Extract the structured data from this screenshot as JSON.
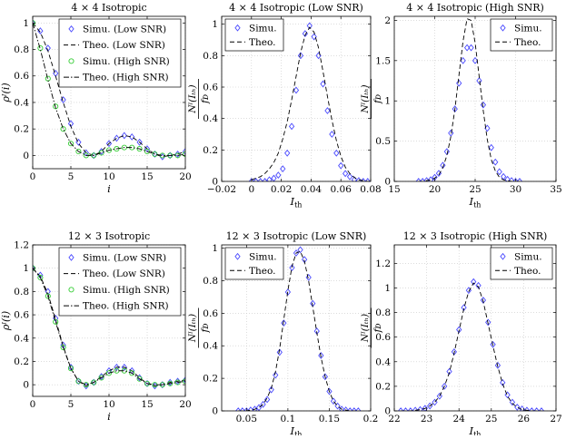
{
  "chart_data": [
    {
      "type": "line",
      "title": "4 × 4 Isotropic",
      "xlabel": "i",
      "ylabel": "ρ_I(i)",
      "xlim": [
        0,
        20
      ],
      "ylim": [
        -0.1,
        1.05
      ],
      "xticks": [
        0,
        5,
        10,
        15,
        20
      ],
      "yticks": [
        0,
        0.2,
        0.4,
        0.6,
        0.8,
        1
      ],
      "grid": true,
      "legend_position": "top-right",
      "series": [
        {
          "name": "Simu. (Low SNR)",
          "style": "marker",
          "marker": "diamond",
          "color": "#4a4aff",
          "x": [
            0,
            1,
            2,
            3,
            4,
            5,
            6,
            7,
            8,
            9,
            10,
            11,
            12,
            13,
            14,
            15,
            16,
            17,
            18,
            19,
            20
          ],
          "y": [
            1,
            0.94,
            0.81,
            0.62,
            0.42,
            0.24,
            0.1,
            0.02,
            0.0,
            0.03,
            0.09,
            0.13,
            0.15,
            0.14,
            0.1,
            0.05,
            0.01,
            -0.01,
            0.0,
            0.01,
            0.03
          ]
        },
        {
          "name": "Theo. (Low SNR)",
          "style": "dashed",
          "color": "#000000",
          "x": [
            0,
            1,
            2,
            3,
            4,
            5,
            6,
            7,
            8,
            9,
            10,
            11,
            12,
            13,
            14,
            15,
            16,
            17,
            18,
            19,
            20
          ],
          "y": [
            1,
            0.93,
            0.79,
            0.6,
            0.4,
            0.22,
            0.09,
            0.02,
            0.0,
            0.03,
            0.09,
            0.13,
            0.15,
            0.14,
            0.1,
            0.05,
            0.01,
            -0.01,
            0.0,
            0.01,
            0.03
          ]
        },
        {
          "name": "Simu. (High SNR)",
          "style": "marker",
          "marker": "circle",
          "color": "#33cc33",
          "x": [
            0,
            1,
            2,
            3,
            4,
            5,
            6,
            7,
            8,
            9,
            10,
            11,
            12,
            13,
            14,
            15,
            16,
            17,
            18,
            19,
            20
          ],
          "y": [
            1,
            0.81,
            0.58,
            0.37,
            0.2,
            0.09,
            0.03,
            0.0,
            0.0,
            0.02,
            0.04,
            0.05,
            0.06,
            0.06,
            0.05,
            0.03,
            0.01,
            0.0,
            0.0,
            0.0,
            0.01
          ]
        },
        {
          "name": "Theo. (High SNR)",
          "style": "dashdot",
          "color": "#000000",
          "x": [
            0,
            1,
            2,
            3,
            4,
            5,
            6,
            7,
            8,
            9,
            10,
            11,
            12,
            13,
            14,
            15,
            16,
            17,
            18,
            19,
            20
          ],
          "y": [
            1,
            0.8,
            0.57,
            0.36,
            0.2,
            0.09,
            0.03,
            0.0,
            0.0,
            0.02,
            0.04,
            0.05,
            0.06,
            0.06,
            0.05,
            0.03,
            0.01,
            0.0,
            0.0,
            0.0,
            0.01
          ]
        }
      ]
    },
    {
      "type": "line",
      "title": "4 × 4 Isotropic (Low SNR)",
      "xlabel": "I_th",
      "ylabel": "N_I(I_th) / f_D",
      "xlim": [
        -0.02,
        0.08
      ],
      "ylim": [
        0,
        1.05
      ],
      "xticks": [
        -0.02,
        0,
        0.02,
        0.04,
        0.06,
        0.08
      ],
      "yticks": [
        0,
        0.2,
        0.4,
        0.6,
        0.8,
        1
      ],
      "grid": true,
      "legend_position": "top-left",
      "series": [
        {
          "name": "Simu.",
          "style": "marker",
          "marker": "diamond",
          "color": "#4a4aff",
          "x": [
            0.0,
            0.003,
            0.006,
            0.009,
            0.012,
            0.015,
            0.018,
            0.021,
            0.024,
            0.027,
            0.03,
            0.033,
            0.036,
            0.039,
            0.042,
            0.045,
            0.048,
            0.051,
            0.054,
            0.057,
            0.06,
            0.063,
            0.066,
            0.069,
            0.072,
            0.075,
            0.078
          ],
          "y": [
            0,
            0,
            0,
            0,
            0.01,
            0.02,
            0.04,
            0.08,
            0.18,
            0.35,
            0.58,
            0.8,
            0.94,
            0.99,
            0.92,
            0.8,
            0.62,
            0.45,
            0.3,
            0.18,
            0.1,
            0.05,
            0.03,
            0.01,
            0.005,
            0,
            0
          ]
        },
        {
          "name": "Theo.",
          "style": "dashed",
          "color": "#000000",
          "x": [
            0.0,
            0.003,
            0.006,
            0.009,
            0.012,
            0.015,
            0.018,
            0.021,
            0.024,
            0.027,
            0.03,
            0.033,
            0.036,
            0.039,
            0.042,
            0.045,
            0.048,
            0.051,
            0.054,
            0.057,
            0.06,
            0.063,
            0.066,
            0.069,
            0.072,
            0.075,
            0.078
          ],
          "y": [
            0.01,
            0.02,
            0.03,
            0.05,
            0.08,
            0.12,
            0.18,
            0.27,
            0.38,
            0.52,
            0.67,
            0.82,
            0.93,
            0.98,
            0.95,
            0.85,
            0.7,
            0.54,
            0.39,
            0.26,
            0.16,
            0.09,
            0.05,
            0.025,
            0.01,
            0.005,
            0
          ]
        }
      ]
    },
    {
      "type": "line",
      "title": "4 × 4 Isotropic (High SNR)",
      "xlabel": "I_th",
      "ylabel": "N_I(I_th) / f_D",
      "xlim": [
        15,
        35
      ],
      "ylim": [
        0,
        2.05
      ],
      "xticks": [
        15,
        20,
        25,
        30,
        35
      ],
      "yticks": [
        0,
        0.5,
        1,
        1.5,
        2
      ],
      "grid": true,
      "legend_position": "top-right",
      "series": [
        {
          "name": "Simu.",
          "style": "marker",
          "marker": "diamond",
          "color": "#4a4aff",
          "x": [
            18,
            18.5,
            19,
            19.5,
            20,
            20.5,
            21,
            21.5,
            22,
            22.5,
            23,
            23.5,
            24,
            24.5,
            25,
            25.5,
            26,
            26.5,
            27,
            27.5,
            28,
            28.5,
            29,
            29.5,
            30,
            30.5
          ],
          "y": [
            0,
            0,
            0.01,
            0.02,
            0.05,
            0.1,
            0.2,
            0.37,
            0.6,
            0.9,
            1.22,
            1.5,
            1.66,
            1.66,
            1.5,
            1.25,
            0.95,
            0.66,
            0.42,
            0.24,
            0.12,
            0.06,
            0.025,
            0.01,
            0,
            0
          ]
        },
        {
          "name": "Theo.",
          "style": "dashed",
          "color": "#000000",
          "x": [
            18,
            18.5,
            19,
            19.5,
            20,
            20.5,
            21,
            21.5,
            22,
            22.5,
            23,
            23.5,
            24,
            24.5,
            25,
            25.5,
            26,
            26.5,
            27,
            27.5,
            28,
            28.5,
            29,
            29.5,
            30,
            30.5
          ],
          "y": [
            0,
            0,
            0.01,
            0.02,
            0.04,
            0.08,
            0.17,
            0.32,
            0.56,
            0.9,
            1.32,
            1.74,
            2.02,
            2.0,
            1.72,
            1.3,
            0.88,
            0.52,
            0.27,
            0.13,
            0.05,
            0.02,
            0.01,
            0,
            0,
            0
          ]
        }
      ]
    },
    {
      "type": "line",
      "title": "12 × 3 Isotropic",
      "xlabel": "i",
      "ylabel": "ρ_I(i)",
      "xlim": [
        0,
        20
      ],
      "ylim": [
        -0.1,
        1.2
      ],
      "xticks": [
        0,
        5,
        10,
        15,
        20
      ],
      "yticks": [
        0,
        0.2,
        0.4,
        0.6,
        0.8,
        1,
        1.2
      ],
      "grid": true,
      "legend_position": "top-right",
      "series": [
        {
          "name": "Simu. (Low SNR)",
          "style": "marker",
          "marker": "diamond",
          "color": "#4a4aff",
          "x": [
            0,
            1,
            2,
            3,
            4,
            5,
            6,
            7,
            8,
            9,
            10,
            11,
            12,
            13,
            14,
            15,
            16,
            17,
            18,
            19,
            20
          ],
          "y": [
            1,
            0.94,
            0.8,
            0.57,
            0.34,
            0.15,
            0.03,
            -0.01,
            0.02,
            0.07,
            0.12,
            0.15,
            0.15,
            0.12,
            0.06,
            0.01,
            -0.01,
            0.0,
            0.02,
            0.03,
            0.04
          ]
        },
        {
          "name": "Theo. (Low SNR)",
          "style": "dashed",
          "color": "#000000",
          "x": [
            0,
            1,
            2,
            3,
            4,
            5,
            6,
            7,
            8,
            9,
            10,
            11,
            12,
            13,
            14,
            15,
            16,
            17,
            18,
            19,
            20
          ],
          "y": [
            1,
            0.93,
            0.78,
            0.56,
            0.33,
            0.14,
            0.03,
            -0.01,
            0.02,
            0.07,
            0.12,
            0.15,
            0.15,
            0.12,
            0.06,
            0.01,
            -0.01,
            0.0,
            0.02,
            0.03,
            0.04
          ]
        },
        {
          "name": "Simu. (High SNR)",
          "style": "marker",
          "marker": "circle",
          "color": "#33cc33",
          "x": [
            0,
            1,
            2,
            3,
            4,
            5,
            6,
            7,
            8,
            9,
            10,
            11,
            12,
            13,
            14,
            15,
            16,
            17,
            18,
            19,
            20
          ],
          "y": [
            1,
            0.92,
            0.76,
            0.54,
            0.32,
            0.14,
            0.03,
            0.0,
            0.02,
            0.06,
            0.1,
            0.12,
            0.12,
            0.1,
            0.05,
            0.01,
            0.0,
            0.0,
            0.01,
            0.02,
            0.03
          ]
        },
        {
          "name": "Theo. (High SNR)",
          "style": "dashdot",
          "color": "#000000",
          "x": [
            0,
            1,
            2,
            3,
            4,
            5,
            6,
            7,
            8,
            9,
            10,
            11,
            12,
            13,
            14,
            15,
            16,
            17,
            18,
            19,
            20
          ],
          "y": [
            1,
            0.92,
            0.76,
            0.54,
            0.32,
            0.14,
            0.03,
            0.0,
            0.02,
            0.06,
            0.1,
            0.12,
            0.12,
            0.1,
            0.05,
            0.01,
            0.0,
            0.0,
            0.01,
            0.02,
            0.03
          ]
        }
      ]
    },
    {
      "type": "line",
      "title": "12 × 3 Isotropic (Low SNR)",
      "xlabel": "I_th",
      "ylabel": "N_I(I_th) / f_D",
      "xlim": [
        0.02,
        0.2
      ],
      "ylim": [
        0,
        1.02
      ],
      "xticks": [
        0.05,
        0.1,
        0.15,
        0.2
      ],
      "yticks": [
        0,
        0.2,
        0.4,
        0.6,
        0.8,
        1
      ],
      "grid": true,
      "legend_position": "top-left",
      "series": [
        {
          "name": "Simu.",
          "style": "marker",
          "marker": "diamond",
          "color": "#4a4aff",
          "x": [
            0.04,
            0.045,
            0.05,
            0.055,
            0.06,
            0.065,
            0.07,
            0.075,
            0.08,
            0.085,
            0.09,
            0.095,
            0.1,
            0.105,
            0.11,
            0.115,
            0.12,
            0.125,
            0.13,
            0.135,
            0.14,
            0.145,
            0.15,
            0.155,
            0.16,
            0.165,
            0.17,
            0.175,
            0.18,
            0.185
          ],
          "y": [
            0,
            0,
            0,
            0.005,
            0.01,
            0.02,
            0.04,
            0.07,
            0.13,
            0.22,
            0.36,
            0.54,
            0.73,
            0.88,
            0.97,
            0.99,
            0.93,
            0.82,
            0.66,
            0.49,
            0.34,
            0.21,
            0.12,
            0.06,
            0.03,
            0.01,
            0.005,
            0,
            0,
            0
          ]
        },
        {
          "name": "Theo.",
          "style": "dashed",
          "color": "#000000",
          "x": [
            0.04,
            0.045,
            0.05,
            0.055,
            0.06,
            0.065,
            0.07,
            0.075,
            0.08,
            0.085,
            0.09,
            0.095,
            0.1,
            0.105,
            0.11,
            0.115,
            0.12,
            0.125,
            0.13,
            0.135,
            0.14,
            0.145,
            0.15,
            0.155,
            0.16,
            0.165,
            0.17,
            0.175,
            0.18,
            0.185
          ],
          "y": [
            0,
            0,
            0,
            0.005,
            0.01,
            0.02,
            0.04,
            0.08,
            0.14,
            0.24,
            0.38,
            0.56,
            0.74,
            0.89,
            0.97,
            0.98,
            0.92,
            0.8,
            0.64,
            0.48,
            0.33,
            0.21,
            0.12,
            0.06,
            0.03,
            0.01,
            0.005,
            0,
            0,
            0
          ]
        }
      ]
    },
    {
      "type": "line",
      "title": "12 × 3 Isotropic (High SNR)",
      "xlabel": "I_th",
      "ylabel": "N_I(I_th) / f_D",
      "xlim": [
        22,
        27
      ],
      "ylim": [
        0,
        1.35
      ],
      "xticks": [
        22,
        23,
        24,
        25,
        26,
        27
      ],
      "yticks": [
        0,
        0.2,
        0.4,
        0.6,
        0.8,
        1,
        1.2
      ],
      "grid": true,
      "legend_position": "top-right",
      "series": [
        {
          "name": "Simu.",
          "style": "marker",
          "marker": "diamond",
          "color": "#4a4aff",
          "x": [
            22.2,
            22.35,
            22.5,
            22.65,
            22.8,
            22.95,
            23.1,
            23.25,
            23.4,
            23.55,
            23.7,
            23.85,
            24.0,
            24.15,
            24.3,
            24.45,
            24.6,
            24.75,
            24.9,
            25.05,
            25.2,
            25.35,
            25.5,
            25.65,
            25.8,
            25.95,
            26.1,
            26.25,
            26.4,
            26.55
          ],
          "y": [
            0,
            0,
            0,
            0.005,
            0.01,
            0.02,
            0.04,
            0.07,
            0.12,
            0.2,
            0.32,
            0.48,
            0.66,
            0.84,
            0.98,
            1.05,
            1.02,
            0.9,
            0.72,
            0.54,
            0.37,
            0.23,
            0.13,
            0.07,
            0.03,
            0.015,
            0.005,
            0,
            0,
            0
          ]
        },
        {
          "name": "Theo.",
          "style": "dashed",
          "color": "#000000",
          "x": [
            22.2,
            22.35,
            22.5,
            22.65,
            22.8,
            22.95,
            23.1,
            23.25,
            23.4,
            23.55,
            23.7,
            23.85,
            24.0,
            24.15,
            24.3,
            24.45,
            24.6,
            24.75,
            24.9,
            25.05,
            25.2,
            25.35,
            25.5,
            25.65,
            25.8,
            25.95,
            26.1,
            26.25,
            26.4,
            26.55
          ],
          "y": [
            0,
            0,
            0,
            0.005,
            0.01,
            0.02,
            0.04,
            0.07,
            0.12,
            0.2,
            0.31,
            0.47,
            0.65,
            0.83,
            0.97,
            1.04,
            1.01,
            0.89,
            0.71,
            0.53,
            0.36,
            0.22,
            0.12,
            0.06,
            0.03,
            0.01,
            0.005,
            0,
            0,
            0
          ]
        }
      ]
    }
  ]
}
